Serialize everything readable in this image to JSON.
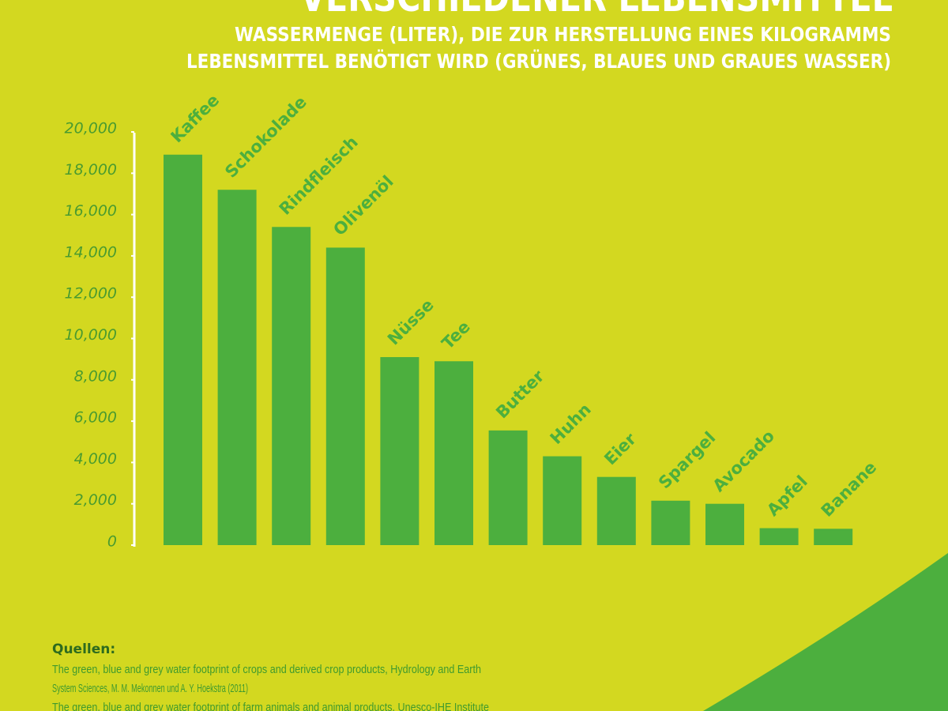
{
  "chart_data": {
    "type": "bar",
    "title": "VERSCHIEDENER LEBENSMITTEL",
    "subtitle": [
      "WASSERMENGE (LITER), DIE ZUR HERSTELLUNG EINES KILOGRAMMS",
      "LEBENSMITTEL BENÖTIGT WIRD (GRÜNES, BLAUES UND GRAUES WASSER)"
    ],
    "categories": [
      "Kaffee",
      "Schokolade",
      "Rindfleisch",
      "Olivenöl",
      "Nüsse",
      "Tee",
      "Butter",
      "Huhn",
      "Eier",
      "Spargel",
      "Avocado",
      "Apfel",
      "Banane"
    ],
    "values": [
      18900,
      17200,
      15400,
      14400,
      9100,
      8900,
      5550,
      4300,
      3300,
      2150,
      2000,
      820,
      790
    ],
    "color": "#4caf3e",
    "ylim": [
      0,
      20000
    ],
    "yticks": [
      0,
      {
        "value": 2000,
        "label": "2,000"
      },
      {
        "value": 4000,
        "label": "4,000"
      },
      {
        "value": 6000,
        "label": "6,000"
      },
      {
        "value": 8000,
        "label": "8,000"
      },
      {
        "value": 10000,
        "label": "10,000"
      },
      {
        "value": 12000,
        "label": "12,000"
      },
      {
        "value": 14000,
        "label": "14,000"
      },
      {
        "value": 16000,
        "label": "16,000"
      },
      {
        "value": 18000,
        "label": "18,000"
      },
      {
        "value": 20000,
        "label": "20,000"
      }
    ],
    "grid": false,
    "sources_heading": "Quellen:",
    "sources": [
      "The green, blue and grey water footprint of crops and derived crop products, Hydrology and Earth",
      "System Sciences, M. M. Mekonnen und A. Y. Hoekstra (2011)",
      "The green, blue and grey water footprint of farm animals and animal products, Unesco-IHE Institute"
    ]
  }
}
